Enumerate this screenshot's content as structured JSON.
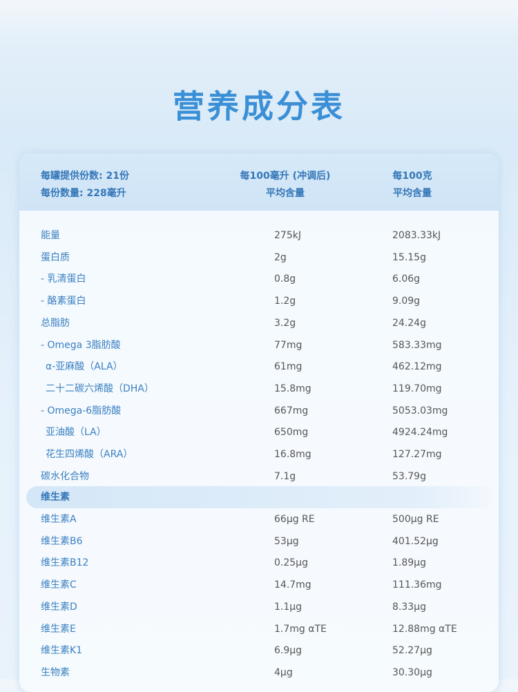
{
  "title": "营养成分表",
  "table": {
    "header": [
      [
        "每罐提供份数: 21份",
        "每份数量: 228毫升"
      ],
      [
        "每100毫升 (冲调后)",
        "平均含量"
      ],
      [
        "每100克",
        "平均含量"
      ]
    ],
    "rows": [
      [
        "能量",
        "275kJ",
        "2083.33kJ"
      ],
      [
        "蛋白质",
        "2g",
        "15.15g"
      ],
      [
        "- 乳清蛋白",
        "0.8g",
        "6.06g"
      ],
      [
        "- 酪素蛋白",
        "1.2g",
        "9.09g"
      ],
      [
        "总脂肪",
        "3.2g",
        "24.24g"
      ],
      [
        "- Omega 3脂肪酸",
        "77mg",
        "583.33mg"
      ],
      [
        "α-亚麻酸（ALA）",
        "61mg",
        "462.12mg"
      ],
      [
        "二十二碳六烯酸（DHA）",
        "15.8mg",
        "119.70mg"
      ],
      [
        "- Omega-6脂肪酸",
        "667mg",
        "5053.03mg"
      ],
      [
        "亚油酸（LA）",
        "650mg",
        "4924.24mg"
      ],
      [
        "花生四烯酸（ARA）",
        "16.8mg",
        "127.27mg"
      ],
      [
        "碳水化合物",
        "7.1g",
        "53.79g"
      ]
    ],
    "section": "维生素",
    "section_rows": [
      [
        "维生素A",
        "66μg RE",
        "500μg RE"
      ],
      [
        "维生素B6",
        "53μg",
        "401.52μg"
      ],
      [
        "维生素B12",
        "0.25μg",
        "1.89μg"
      ],
      [
        "维生素C",
        "14.7mg",
        "111.36mg"
      ],
      [
        "维生素D",
        "1.1μg",
        "8.33μg"
      ],
      [
        "维生素E",
        "1.7mg αTE",
        "12.88mg αTE"
      ],
      [
        "维生素K1",
        "6.9μg",
        "52.27μg"
      ],
      [
        "生物素",
        "4μg",
        "30.30μg"
      ]
    ]
  }
}
